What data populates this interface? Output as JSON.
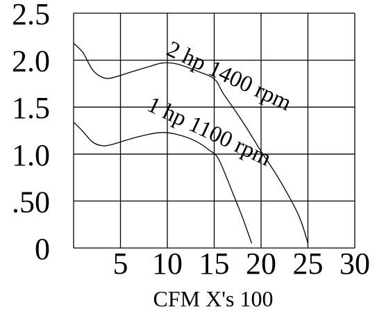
{
  "chart_data": {
    "type": "line",
    "title": "",
    "xlabel": "CFM X's 100",
    "ylabel": "",
    "xlim": [
      0,
      30
    ],
    "ylim": [
      0,
      2.5
    ],
    "grid": true,
    "x_ticks": [
      {
        "value": 5,
        "label": "5"
      },
      {
        "value": 10,
        "label": "10"
      },
      {
        "value": 15,
        "label": "15"
      },
      {
        "value": 20,
        "label": "20"
      },
      {
        "value": 25,
        "label": "25"
      },
      {
        "value": 30,
        "label": "30"
      }
    ],
    "y_ticks": [
      {
        "value": 0,
        "label": "0"
      },
      {
        "value": 0.5,
        "label": ".50"
      },
      {
        "value": 1.0,
        "label": "1.0"
      },
      {
        "value": 1.5,
        "label": "1.5"
      },
      {
        "value": 2.0,
        "label": "2.0"
      },
      {
        "value": 2.5,
        "label": "2.5"
      }
    ],
    "series": [
      {
        "name": "2 hp 1400 rpm",
        "points": [
          [
            0,
            2.18
          ],
          [
            1,
            2.08
          ],
          [
            2,
            1.9
          ],
          [
            3,
            1.82
          ],
          [
            4,
            1.81
          ],
          [
            6,
            1.87
          ],
          [
            8,
            1.93
          ],
          [
            9.5,
            1.97
          ],
          [
            11,
            1.96
          ],
          [
            13,
            1.89
          ],
          [
            15,
            1.8
          ],
          [
            16,
            1.64
          ],
          [
            18,
            1.35
          ],
          [
            20,
            1.03
          ],
          [
            22,
            0.72
          ],
          [
            24,
            0.35
          ],
          [
            25,
            0.05
          ]
        ]
      },
      {
        "name": "1 hp 1100 rpm",
        "points": [
          [
            0,
            1.34
          ],
          [
            1,
            1.24
          ],
          [
            2,
            1.13
          ],
          [
            3,
            1.09
          ],
          [
            4,
            1.1
          ],
          [
            6,
            1.16
          ],
          [
            8,
            1.21
          ],
          [
            9.5,
            1.23
          ],
          [
            11,
            1.21
          ],
          [
            13,
            1.14
          ],
          [
            14.5,
            1.04
          ],
          [
            15.5,
            0.94
          ],
          [
            17,
            0.58
          ],
          [
            18,
            0.33
          ],
          [
            19,
            0.05
          ]
        ]
      }
    ]
  }
}
